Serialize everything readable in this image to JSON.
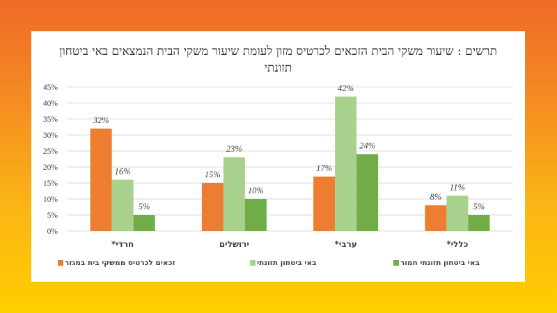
{
  "colors": {
    "series_1": "#ED7D31",
    "series_2": "#A9D18E",
    "series_3": "#70AD47",
    "gridline": "#D9D9D9"
  },
  "chart_data": {
    "type": "bar",
    "title": "תרשים : שיעור משקי הבית הזכאים לכרטיס מזון לעומת שיעור משקי הבית הנמצאים באי ביטחון תזונתי",
    "xlabel": "",
    "ylabel": "",
    "categories": [
      "חרדי*",
      "ירושלים",
      "ערבי*",
      "כללי*"
    ],
    "series": [
      {
        "name": "זכאים לכרטיס ממשקי בית במגזר",
        "values": [
          32,
          15,
          17,
          8
        ],
        "labels": [
          "32%",
          "15%",
          "17%",
          "8%"
        ]
      },
      {
        "name": "באי ביטחון תזונתי",
        "values": [
          16,
          23,
          42,
          11
        ],
        "labels": [
          "16%",
          "23%",
          "42%",
          "11%"
        ]
      },
      {
        "name": "באי ביטחון תזונתי חמור",
        "values": [
          5,
          10,
          24,
          5
        ],
        "labels": [
          "5%",
          "10%",
          "24%",
          "5%"
        ]
      }
    ],
    "ylim": [
      0,
      45
    ],
    "yticks": [
      0,
      5,
      10,
      15,
      20,
      25,
      30,
      35,
      40,
      45
    ],
    "ytick_labels": [
      "0%",
      "5%",
      "10%",
      "15%",
      "20%",
      "25%",
      "30%",
      "35%",
      "40%",
      "45%"
    ],
    "grid": true,
    "legend_position": "bottom"
  }
}
